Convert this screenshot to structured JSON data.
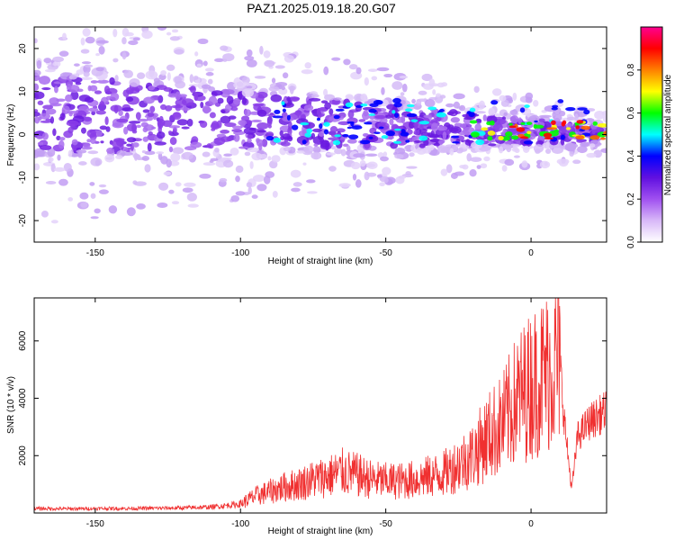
{
  "figure_title": "PAZ1.2025.019.18.20.G07",
  "colors": {
    "snr_line": "#f03030",
    "spectral_purple": "#8a2be2",
    "spectral_light": "#d9c4f5",
    "frame": "#000000"
  },
  "chart_data": [
    {
      "type": "heatmap",
      "title": "",
      "xlabel": "Height of straight line (km)",
      "ylabel": "Frequency (Hz)",
      "xlim": [
        -171,
        26
      ],
      "ylim": [
        -25,
        25
      ],
      "xticks": [
        -150,
        -100,
        -50,
        0
      ],
      "yticks": [
        -20,
        -10,
        0,
        10,
        20
      ],
      "colorbar": {
        "label": "Normalized spectral amplitude",
        "range": [
          0,
          1
        ],
        "ticks": [
          "0.0",
          "0.2",
          "0.4",
          "0.6",
          "0.8"
        ],
        "tick_values": [
          0,
          0.2,
          0.4,
          0.6,
          0.8
        ],
        "colormap": [
          "#ffffff",
          "#d8b8f8",
          "#a050f0",
          "#6010e0",
          "#0000ff",
          "#00ffff",
          "#00ff00",
          "#ffff00",
          "#ff8000",
          "#ff0000",
          "#ff0090"
        ]
      },
      "grid": false
    },
    {
      "type": "line",
      "title": "",
      "xlabel": "Height of straight line (km)",
      "ylabel": "SNR (10 * v/v)",
      "xlim": [
        -171,
        26
      ],
      "ylim": [
        0,
        7500
      ],
      "xticks": [
        -150,
        -100,
        -50,
        0
      ],
      "yticks": [
        2000,
        4000,
        6000
      ],
      "series": [
        {
          "x": [
            -171,
            -160,
            -150,
            -140,
            -130,
            -120,
            -110,
            -100,
            -95,
            -90,
            -85,
            -80,
            -75,
            -70,
            -65,
            -60,
            -55,
            -50,
            -45,
            -40,
            -35,
            -30,
            -25,
            -20,
            -15,
            -10,
            -5,
            0,
            5,
            10,
            12,
            14,
            16,
            20,
            26
          ],
          "y": [
            150,
            140,
            150,
            150,
            160,
            170,
            200,
            300,
            550,
            700,
            850,
            950,
            1100,
            1200,
            1350,
            1250,
            1100,
            1050,
            1050,
            1100,
            1200,
            1300,
            1600,
            1900,
            2500,
            2900,
            3700,
            4200,
            4600,
            5000,
            2600,
            800,
            2600,
            3100,
            3500
          ]
        }
      ],
      "grid": false
    }
  ]
}
